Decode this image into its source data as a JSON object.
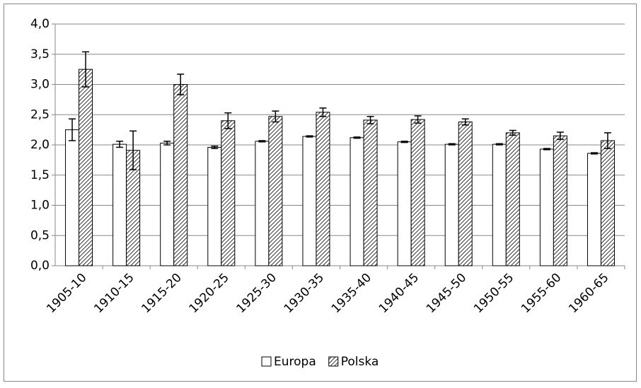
{
  "chart_data": {
    "type": "bar",
    "categories": [
      "1905-10",
      "1910-15",
      "1915-20",
      "1920-25",
      "1925-30",
      "1930-35",
      "1935-40",
      "1940-45",
      "1945-50",
      "1950-55",
      "1955-60",
      "1960-65"
    ],
    "series": [
      {
        "name": "Europa",
        "color": "#ffffff",
        "values": [
          2.25,
          2.01,
          2.03,
          1.96,
          2.06,
          2.14,
          2.12,
          2.05,
          2.01,
          2.01,
          1.93,
          1.86
        ],
        "errors": [
          0.18,
          0.05,
          0.03,
          0.02,
          0.01,
          0.01,
          0.01,
          0.01,
          0.01,
          0.01,
          0.01,
          0.01
        ]
      },
      {
        "name": "Polska",
        "color": "hatch",
        "values": [
          3.25,
          1.91,
          3.0,
          2.4,
          2.47,
          2.54,
          2.41,
          2.42,
          2.38,
          2.2,
          2.15,
          2.07
        ],
        "errors": [
          0.29,
          0.32,
          0.17,
          0.13,
          0.09,
          0.07,
          0.06,
          0.06,
          0.05,
          0.04,
          0.06,
          0.13
        ]
      }
    ],
    "ylim": [
      0,
      4
    ],
    "yticks": [
      {
        "value": 0,
        "label": "0,0"
      },
      {
        "value": 0.5,
        "label": "0,5"
      },
      {
        "value": 1,
        "label": "1,0"
      },
      {
        "value": 1.5,
        "label": "1,5"
      },
      {
        "value": 2,
        "label": "2,0"
      },
      {
        "value": 2.5,
        "label": "2,5"
      },
      {
        "value": 3,
        "label": "3,0"
      },
      {
        "value": 3.5,
        "label": "3,5"
      },
      {
        "value": 4,
        "label": "4,0"
      }
    ],
    "grid": true,
    "legend": "bottom"
  }
}
